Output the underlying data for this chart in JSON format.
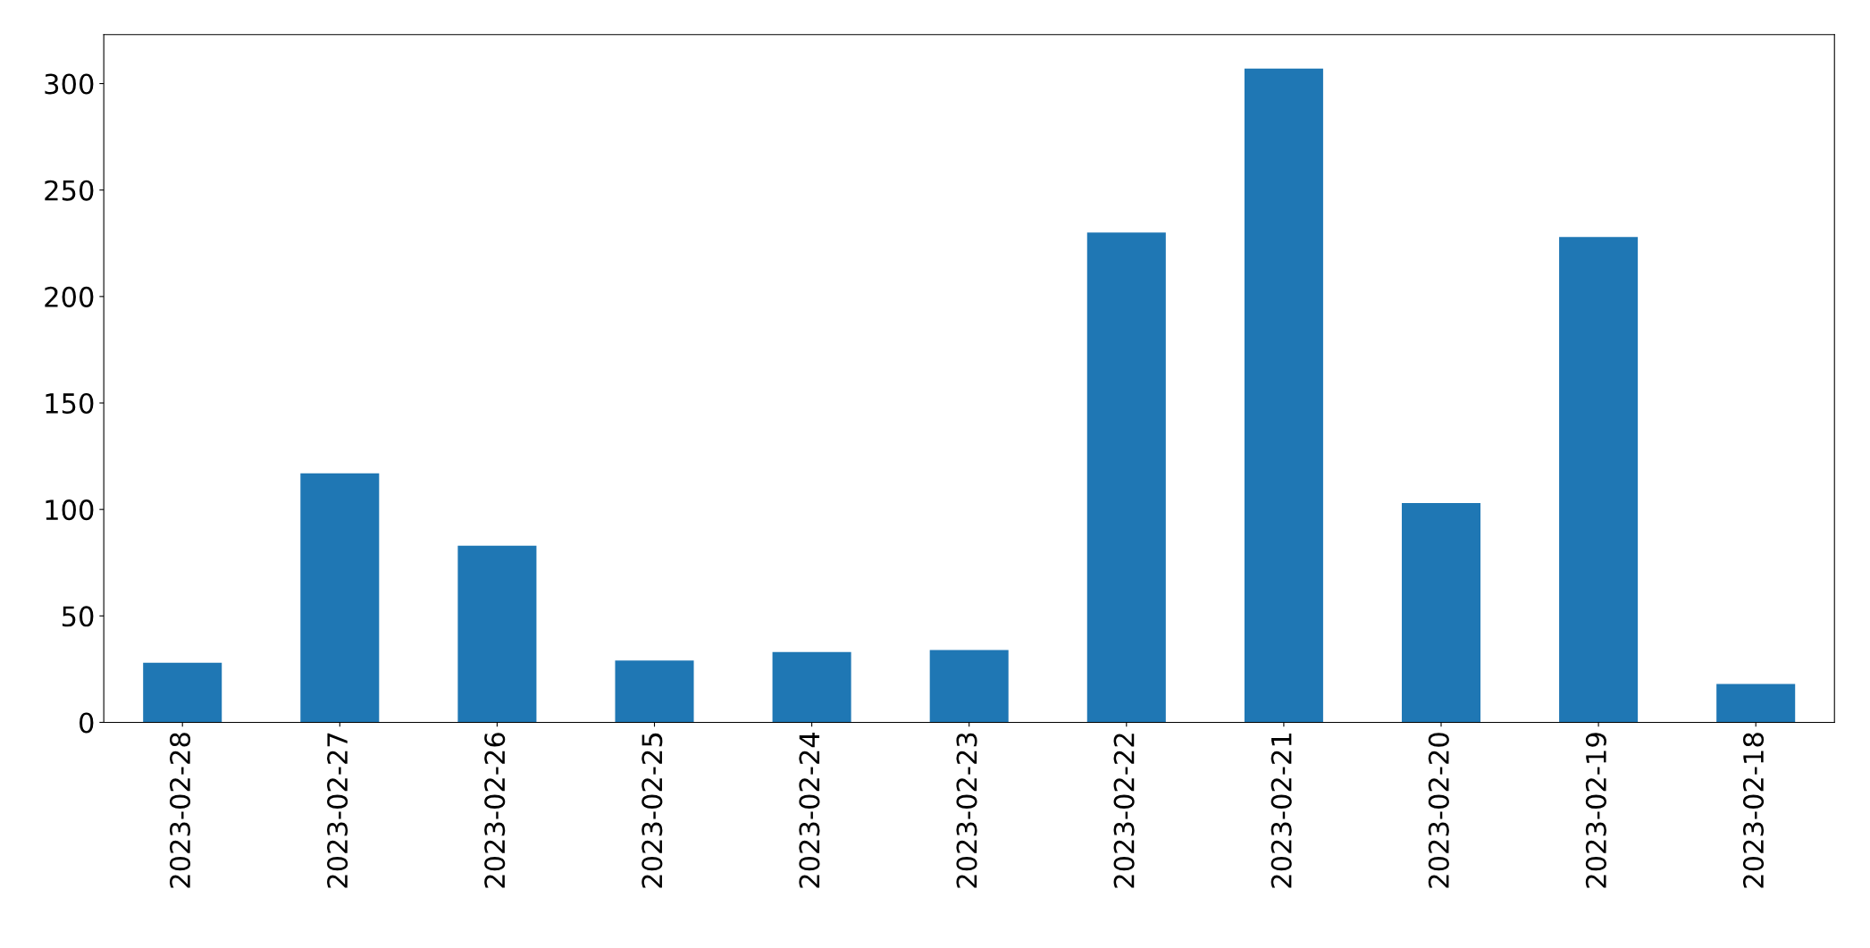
{
  "chart_data": {
    "type": "bar",
    "categories": [
      "2023-02-28",
      "2023-02-27",
      "2023-02-26",
      "2023-02-25",
      "2023-02-24",
      "2023-02-23",
      "2023-02-22",
      "2023-02-21",
      "2023-02-20",
      "2023-02-19",
      "2023-02-18"
    ],
    "values": [
      28,
      117,
      83,
      29,
      33,
      34,
      230,
      307,
      103,
      228,
      18
    ],
    "color": "#1f77b4",
    "ylim": [
      0,
      323
    ],
    "yticks": [
      0,
      50,
      100,
      150,
      200,
      250,
      300
    ],
    "grid": false
  }
}
